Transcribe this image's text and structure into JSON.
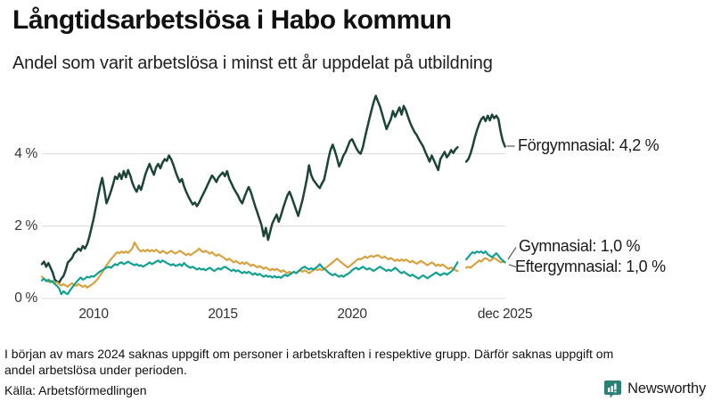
{
  "title": "Långtidsarbetslösa i Habo kommun",
  "subtitle": "Andel som varit arbetslösa i minst ett år uppdelat på utbildning",
  "footnote_lines": [
    "I början av mars 2024 saknas uppgift om personer i arbetskraften i respektive grupp. Därför saknas uppgift om",
    "andel arbetslösa under perioden."
  ],
  "source": "Källa: Arbetsförmedlingen",
  "branding": {
    "name": "Newsworthy",
    "color": "#2b7f77"
  },
  "chart_data": {
    "type": "line",
    "title": "Långtidsarbetslösa i Habo kommun",
    "subtitle": "Andel som varit arbetslösa i minst ett år uppdelat på utbildning",
    "x_unit": "year (monthly data)",
    "y_unit": "percent",
    "x_range": [
      2008.0,
      2025.917
    ],
    "y_range": [
      0,
      6
    ],
    "grid": "horizontal",
    "legend_position": "end-of-line-labels",
    "gap_note": "data missing from early mars 2024 (no values for a few months)",
    "y_ticks": [
      {
        "label": "0 %",
        "value": 0
      },
      {
        "label": "2 %",
        "value": 2
      },
      {
        "label": "4 %",
        "value": 4
      }
    ],
    "x_ticks": [
      {
        "label": "2010",
        "year": 2010
      },
      {
        "label": "2015",
        "year": 2015
      },
      {
        "label": "2020",
        "year": 2020
      },
      {
        "label": "dec 2025",
        "year": 2025.917
      }
    ],
    "start_year": 2008,
    "months_per_step": 1,
    "series": [
      {
        "name": "Förgymnasial",
        "label": "Förgymnasial: 4,2 %",
        "end_value_text": "4,2 %",
        "color": "#1d443a",
        "values": [
          0.95,
          1.02,
          0.88,
          0.98,
          0.85,
          0.72,
          0.52,
          0.47,
          0.44,
          0.55,
          0.62,
          0.78,
          0.99,
          1.05,
          1.12,
          1.25,
          1.3,
          1.38,
          1.32,
          1.45,
          1.38,
          1.5,
          1.7,
          1.95,
          2.2,
          2.5,
          2.8,
          3.1,
          3.33,
          3.0,
          2.63,
          2.78,
          2.95,
          3.15,
          3.37,
          3.3,
          3.45,
          3.3,
          3.52,
          3.35,
          3.55,
          3.4,
          3.2,
          3.05,
          2.95,
          3.12,
          3.0,
          3.2,
          3.42,
          3.58,
          3.72,
          3.55,
          3.42,
          3.62,
          3.72,
          3.6,
          3.75,
          3.85,
          3.8,
          3.95,
          3.85,
          3.7,
          3.52,
          3.35,
          3.22,
          3.3,
          3.1,
          2.95,
          2.82,
          2.7,
          2.6,
          2.65,
          2.55,
          2.65,
          2.78,
          2.9,
          3.02,
          3.15,
          3.28,
          3.4,
          3.32,
          3.22,
          3.35,
          3.42,
          3.48,
          3.38,
          3.52,
          3.3,
          3.18,
          3.05,
          2.95,
          2.85,
          2.72,
          2.63,
          2.8,
          2.95,
          3.08,
          2.95,
          2.75,
          2.55,
          2.38,
          2.2,
          2.02,
          1.72,
          1.95,
          1.62,
          1.85,
          2.08,
          2.2,
          2.32,
          2.12,
          2.3,
          2.5,
          2.68,
          2.85,
          2.95,
          2.8,
          2.62,
          2.45,
          2.28,
          2.5,
          2.72,
          3.0,
          3.3,
          3.68,
          3.42,
          3.28,
          3.2,
          3.12,
          3.05,
          3.18,
          3.28,
          3.55,
          3.85,
          4.1,
          4.25,
          4.08,
          3.88,
          3.65,
          3.78,
          3.95,
          4.05,
          4.2,
          4.35,
          4.4,
          4.28,
          4.15,
          4.05,
          4.0,
          4.18,
          4.45,
          4.7,
          4.95,
          5.2,
          5.42,
          5.6,
          5.45,
          5.3,
          5.1,
          4.88,
          4.68,
          4.82,
          4.95,
          5.18,
          5.02,
          5.15,
          5.28,
          5.08,
          5.32,
          5.2,
          5.02,
          4.85,
          4.72,
          4.6,
          4.52,
          4.4,
          4.3,
          4.2,
          4.05,
          3.92,
          3.78,
          3.95,
          3.82,
          3.68,
          3.55,
          3.85,
          3.95,
          4.05,
          3.9,
          3.98,
          4.1,
          4.02,
          4.12,
          4.18,
          null,
          null,
          null,
          3.78,
          3.85,
          4.0,
          4.2,
          4.45,
          4.65,
          4.82,
          4.95,
          5.02,
          4.9,
          5.05,
          4.92,
          5.08,
          4.98,
          5.05,
          4.95,
          4.6,
          4.35,
          4.2
        ]
      },
      {
        "name": "Eftergymnasial",
        "label": "Eftergymnasial: 1,0 %",
        "end_value_text": "1,0 %",
        "color": "#d8a240",
        "values": [
          0.6,
          0.55,
          0.5,
          0.46,
          0.5,
          0.45,
          0.42,
          0.45,
          0.4,
          0.36,
          0.4,
          0.36,
          0.33,
          0.38,
          0.42,
          0.38,
          0.35,
          0.4,
          0.36,
          0.32,
          0.36,
          0.3,
          0.34,
          0.38,
          0.42,
          0.48,
          0.55,
          0.64,
          0.72,
          0.82,
          0.92,
          1.0,
          1.08,
          1.15,
          1.22,
          1.28,
          1.25,
          1.3,
          1.26,
          1.3,
          1.26,
          1.32,
          1.38,
          1.55,
          1.45,
          1.35,
          1.3,
          1.34,
          1.3,
          1.35,
          1.3,
          1.34,
          1.3,
          1.35,
          1.3,
          1.26,
          1.32,
          1.28,
          1.24,
          1.28,
          1.32,
          1.28,
          1.24,
          1.28,
          1.32,
          1.28,
          1.24,
          1.2,
          1.24,
          1.2,
          1.24,
          1.28,
          1.32,
          1.38,
          1.32,
          1.28,
          1.32,
          1.28,
          1.24,
          1.28,
          1.22,
          1.18,
          1.22,
          1.18,
          1.15,
          1.1,
          1.06,
          1.1,
          1.05,
          1.0,
          1.04,
          1.0,
          0.96,
          1.0,
          0.95,
          1.0,
          0.95,
          0.9,
          0.94,
          0.9,
          0.86,
          0.9,
          0.86,
          0.82,
          0.86,
          0.82,
          0.78,
          0.82,
          0.78,
          0.82,
          0.78,
          0.74,
          0.78,
          0.74,
          0.7,
          0.74,
          0.7,
          0.74,
          0.7,
          0.74,
          0.78,
          0.74,
          0.78,
          0.74,
          0.7,
          0.74,
          0.78,
          0.82,
          0.78,
          0.82,
          0.78,
          0.82,
          0.86,
          0.9,
          0.95,
          1.0,
          1.05,
          1.1,
          1.05,
          1.0,
          0.95,
          0.9,
          0.86,
          0.9,
          0.95,
          1.0,
          1.05,
          1.1,
          1.08,
          1.12,
          1.16,
          1.12,
          1.16,
          1.18,
          1.15,
          1.18,
          1.2,
          1.16,
          1.12,
          1.16,
          1.12,
          1.08,
          1.12,
          1.08,
          1.04,
          1.08,
          1.04,
          1.08,
          1.04,
          1.08,
          1.04,
          1.0,
          1.04,
          1.0,
          0.96,
          1.0,
          1.04,
          1.0,
          0.96,
          0.92,
          0.96,
          1.0,
          0.96,
          0.9,
          0.94,
          0.9,
          0.94,
          0.9,
          0.85,
          0.82,
          0.86,
          0.82,
          0.78,
          0.76,
          null,
          null,
          null,
          0.85,
          0.88,
          0.85,
          0.9,
          0.95,
          1.0,
          1.05,
          1.02,
          1.08,
          1.12,
          1.08,
          1.04,
          1.08,
          1.12,
          1.08,
          1.04,
          1.0,
          1.02,
          1.0
        ]
      },
      {
        "name": "Gymnasial",
        "label": "Gymnasial: 1,0 %",
        "end_value_text": "1,0 %",
        "color": "#12a191",
        "values": [
          0.5,
          0.55,
          0.48,
          0.52,
          0.45,
          0.48,
          0.4,
          0.35,
          0.28,
          0.12,
          0.2,
          0.15,
          0.12,
          0.22,
          0.3,
          0.38,
          0.45,
          0.52,
          0.58,
          0.52,
          0.55,
          0.6,
          0.58,
          0.62,
          0.6,
          0.65,
          0.7,
          0.75,
          0.78,
          0.82,
          0.85,
          0.88,
          0.85,
          0.9,
          0.95,
          0.92,
          0.98,
          1.0,
          0.95,
          0.98,
          1.02,
          0.98,
          0.95,
          0.92,
          0.95,
          0.9,
          0.92,
          0.88,
          0.92,
          0.95,
          1.0,
          0.95,
          0.98,
          1.02,
          1.05,
          1.0,
          1.05,
          1.02,
          0.98,
          0.95,
          0.92,
          0.95,
          0.9,
          0.92,
          0.95,
          0.9,
          0.98,
          0.92,
          0.88,
          0.85,
          0.88,
          0.84,
          0.8,
          0.84,
          0.8,
          0.82,
          0.78,
          0.82,
          0.85,
          0.8,
          0.76,
          0.8,
          0.84,
          0.8,
          0.85,
          0.88,
          0.84,
          0.8,
          0.76,
          0.8,
          0.75,
          0.78,
          0.74,
          0.7,
          0.74,
          0.7,
          0.74,
          0.7,
          0.66,
          0.7,
          0.65,
          0.68,
          0.64,
          0.6,
          0.64,
          0.6,
          0.62,
          0.58,
          0.62,
          0.58,
          0.6,
          0.57,
          0.62,
          0.66,
          0.62,
          0.66,
          0.7,
          0.74,
          0.7,
          0.75,
          0.8,
          0.85,
          0.88,
          0.84,
          0.8,
          0.84,
          0.8,
          0.84,
          0.88,
          0.95,
          0.88,
          0.82,
          0.78,
          0.72,
          0.68,
          0.64,
          0.68,
          0.64,
          0.6,
          0.64,
          0.6,
          0.65,
          0.68,
          0.72,
          0.78,
          0.82,
          0.85,
          0.8,
          0.84,
          0.88,
          0.84,
          0.8,
          0.84,
          0.8,
          0.76,
          0.8,
          0.84,
          0.88,
          0.84,
          0.8,
          0.76,
          0.8,
          0.76,
          0.8,
          0.85,
          0.8,
          0.74,
          0.7,
          0.74,
          0.7,
          0.66,
          0.62,
          0.66,
          0.62,
          0.58,
          0.55,
          0.6,
          0.64,
          0.6,
          0.56,
          0.6,
          0.64,
          0.68,
          0.72,
          0.68,
          0.64,
          0.68,
          0.7,
          0.66,
          0.7,
          0.74,
          0.8,
          0.9,
          1.0,
          null,
          null,
          null,
          1.08,
          1.15,
          1.22,
          1.28,
          1.25,
          1.3,
          1.27,
          1.3,
          1.25,
          1.3,
          1.22,
          1.18,
          1.14,
          1.2,
          1.25,
          1.18,
          1.1,
          1.05,
          1.0
        ]
      }
    ]
  }
}
